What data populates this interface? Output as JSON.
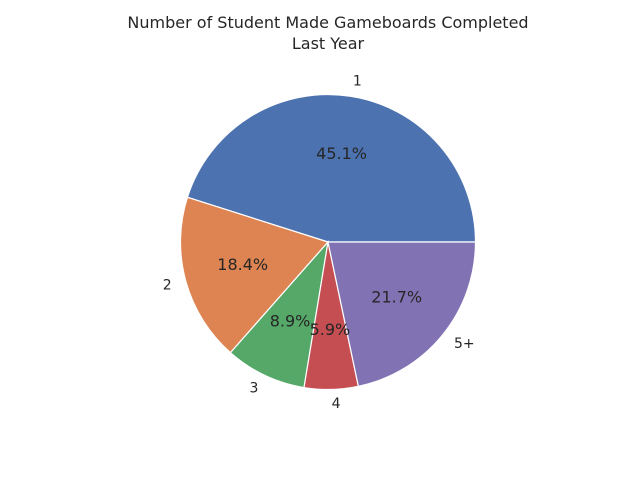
{
  "chart_data": {
    "type": "pie",
    "title": "Number of Student Made Gameboards Completed\nLast Year",
    "categories": [
      "1",
      "2",
      "3",
      "4",
      "5+"
    ],
    "values": [
      45.1,
      18.4,
      8.9,
      5.9,
      21.7
    ],
    "value_labels": [
      "45.1%",
      "18.4%",
      "8.9%",
      "5.9%",
      "21.7%"
    ],
    "colors": [
      "#4c72b0",
      "#dd8452",
      "#55a868",
      "#c44e52",
      "#8172b3"
    ],
    "start_angle_deg": 0,
    "direction": "counterclockwise",
    "legend": "none"
  }
}
